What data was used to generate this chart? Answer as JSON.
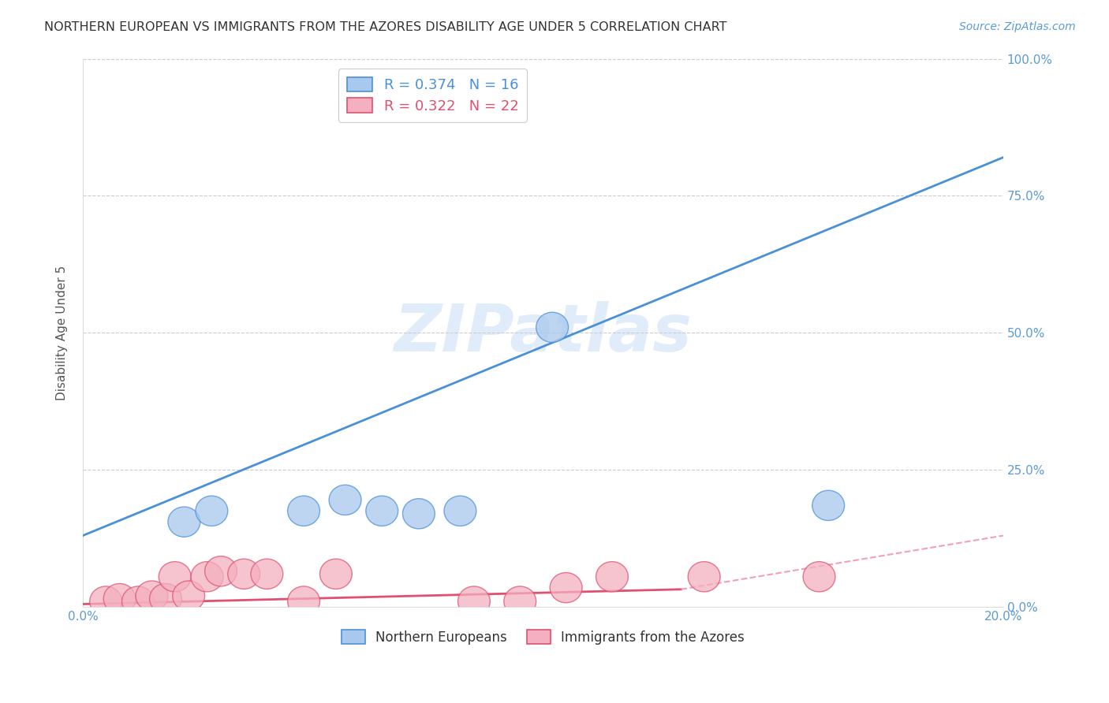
{
  "title": "NORTHERN EUROPEAN VS IMMIGRANTS FROM THE AZORES DISABILITY AGE UNDER 5 CORRELATION CHART",
  "source": "Source: ZipAtlas.com",
  "ylabel": "Disability Age Under 5",
  "xlabel_ticks_show": [
    "0.0%",
    "",
    "",
    "",
    "20.0%"
  ],
  "xlabel_vals": [
    0.0,
    0.05,
    0.1,
    0.15,
    0.2
  ],
  "ylabel_ticks": [
    "0.0%",
    "25.0%",
    "50.0%",
    "75.0%",
    "100.0%"
  ],
  "ylabel_vals": [
    0.0,
    0.25,
    0.5,
    0.75,
    1.0
  ],
  "xlim": [
    0.0,
    0.2
  ],
  "ylim": [
    0.0,
    1.0
  ],
  "blue_color": "#A8C8EE",
  "pink_color": "#F4B0C0",
  "blue_line_color": "#4A90D9",
  "pink_line_color": "#E05070",
  "pink_dash_color": "#F0A0B8",
  "watermark": "ZIPatlas",
  "blue_points_x": [
    0.022,
    0.028,
    0.048,
    0.057,
    0.065,
    0.073,
    0.082,
    0.102,
    0.162
  ],
  "blue_points_y": [
    0.155,
    0.175,
    0.175,
    0.195,
    0.175,
    0.17,
    0.175,
    0.51,
    0.185
  ],
  "pink_points_x": [
    0.005,
    0.008,
    0.012,
    0.015,
    0.018,
    0.02,
    0.023,
    0.027,
    0.03,
    0.035,
    0.04,
    0.048,
    0.055,
    0.085,
    0.095,
    0.105,
    0.115,
    0.135,
    0.16
  ],
  "pink_points_y": [
    0.01,
    0.015,
    0.01,
    0.02,
    0.015,
    0.055,
    0.02,
    0.055,
    0.065,
    0.06,
    0.06,
    0.01,
    0.06,
    0.01,
    0.01,
    0.035,
    0.055,
    0.055,
    0.055
  ],
  "blue_line_x": [
    0.0,
    0.2
  ],
  "blue_line_y": [
    0.13,
    0.82
  ],
  "pink_solid_line_x": [
    0.0,
    0.13
  ],
  "pink_solid_line_y": [
    0.005,
    0.032
  ],
  "pink_dash_line_x": [
    0.13,
    0.2
  ],
  "pink_dash_line_y": [
    0.032,
    0.13
  ],
  "legend_blue_label_R": "0.374",
  "legend_blue_label_N": "16",
  "legend_pink_label_R": "0.322",
  "legend_pink_label_N": "22",
  "bottom_legend_blue": "Northern Europeans",
  "bottom_legend_pink": "Immigrants from the Azores"
}
